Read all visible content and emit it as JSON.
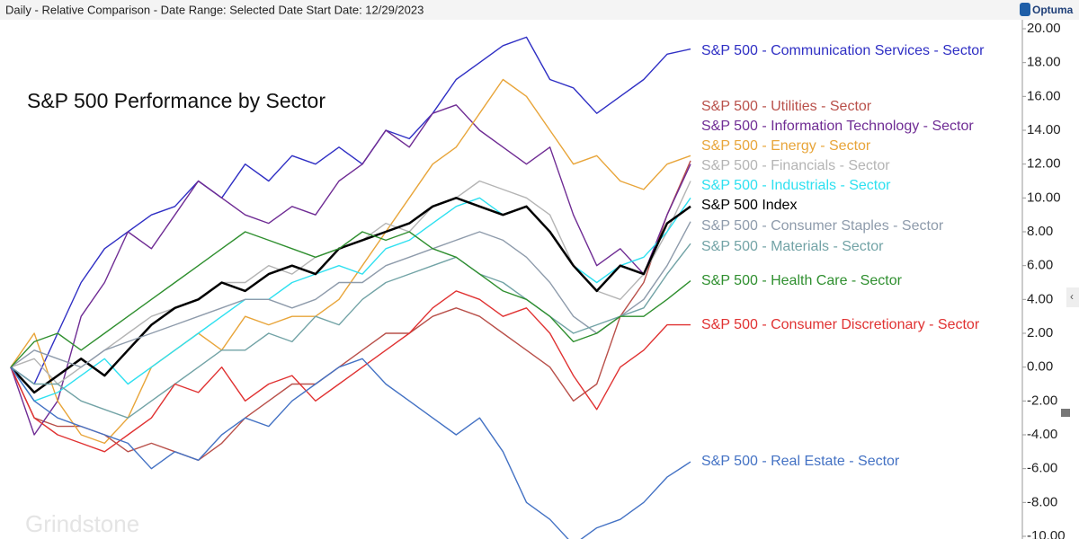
{
  "header": "Daily - Relative Comparison - Date Range: Selected Date  Start Date: 12/29/2023",
  "logo": "Optuma",
  "watermark": "Grindstone",
  "chart_data": {
    "type": "line",
    "title": "S&P 500 Performance by Sector",
    "ylim": [
      -10,
      20
    ],
    "yticks": [
      {
        "value": 20,
        "label": "20.00"
      },
      {
        "value": 18,
        "label": "18.00"
      },
      {
        "value": 16,
        "label": "16.00"
      },
      {
        "value": 14,
        "label": "14.00"
      },
      {
        "value": 12,
        "label": "12.00"
      },
      {
        "value": 10,
        "label": "10.00"
      },
      {
        "value": 8,
        "label": "8.00"
      },
      {
        "value": 6,
        "label": "6.00"
      },
      {
        "value": 4,
        "label": "4.00"
      },
      {
        "value": 2,
        "label": "2.00"
      },
      {
        "value": 0,
        "label": "0.00"
      },
      {
        "value": -2,
        "label": "-2.00"
      },
      {
        "value": -4,
        "label": "-4.00"
      },
      {
        "value": -6,
        "label": "-6.00"
      },
      {
        "value": -8,
        "label": "-8.00"
      },
      {
        "value": -10,
        "label": "-10.00"
      }
    ],
    "series": [
      {
        "name": "S&P 500 - Communication Services - Sector",
        "color": "#2f2fc4",
        "values": [
          0,
          -1,
          2,
          5,
          7,
          8,
          9,
          9.5,
          11,
          10,
          12,
          11,
          12.5,
          12,
          13,
          12,
          14,
          13.5,
          15,
          17,
          18,
          19,
          19.5,
          17,
          16.5,
          15,
          16,
          17,
          18.5,
          18.8
        ]
      },
      {
        "name": "S&P 500 - Utilities - Sector",
        "color": "#b9504a",
        "values": [
          0,
          -3,
          -3.5,
          -3.5,
          -4,
          -5,
          -4.5,
          -5,
          -5.5,
          -4.5,
          -3,
          -2,
          -1,
          -1,
          0,
          1,
          2,
          2,
          3,
          3.5,
          3,
          2,
          1,
          0,
          -2,
          -1,
          3,
          5,
          9,
          12.2
        ]
      },
      {
        "name": "S&P 500 - Information Technology - Sector",
        "color": "#6f2c94",
        "values": [
          0,
          -4,
          -2,
          3,
          5,
          8,
          7,
          9,
          11,
          10,
          9,
          8.5,
          9.5,
          9,
          11,
          12,
          14,
          13,
          15,
          15.5,
          14,
          13,
          12,
          13,
          9,
          6,
          7,
          5.5,
          9,
          12
        ]
      },
      {
        "name": "S&P 500 - Energy - Sector",
        "color": "#e8a53a",
        "values": [
          0,
          2,
          -2,
          -4,
          -4.5,
          -3,
          0,
          1,
          2,
          1,
          3,
          2.5,
          3,
          3,
          4,
          6,
          8,
          10,
          12,
          13,
          15,
          17,
          16,
          14,
          12,
          12.5,
          11,
          10.5,
          12,
          12.5
        ]
      },
      {
        "name": "S&P 500 - Financials - Sector",
        "color": "#b4b4b4",
        "values": [
          0,
          0.5,
          -1,
          0,
          1,
          2,
          3,
          3.5,
          4,
          5,
          5,
          6,
          5.5,
          6.5,
          7,
          7.5,
          8.5,
          8,
          9.5,
          10,
          11,
          10.5,
          10,
          9,
          6,
          4.5,
          4,
          5.5,
          8,
          11
        ]
      },
      {
        "name": "S&P 500 - Industrials - Sector",
        "color": "#2ee0f0",
        "values": [
          0,
          -2,
          -1.5,
          -0.5,
          0.5,
          -1,
          0,
          1,
          2,
          3,
          4,
          4,
          5,
          5.5,
          6,
          5.5,
          7,
          7.5,
          8.5,
          9.5,
          10,
          9,
          9.5,
          8,
          6,
          5,
          6,
          6.5,
          8,
          10
        ]
      },
      {
        "name": "S&P 500 Index",
        "color": "#000000",
        "values": [
          0,
          -1.5,
          -0.5,
          0.5,
          -0.5,
          1,
          2.5,
          3.5,
          4,
          5,
          4.5,
          5.5,
          6,
          5.5,
          7,
          7.5,
          8,
          8.5,
          9.5,
          10,
          9.5,
          9,
          9.5,
          8,
          6,
          4.5,
          6,
          5.5,
          8.5,
          9.5
        ]
      },
      {
        "name": "S&P 500 - Consumer Staples - Sector",
        "color": "#8e9bab",
        "values": [
          0,
          1,
          0.5,
          0,
          1,
          1.5,
          2,
          2.5,
          3,
          3.5,
          4,
          4,
          3.5,
          4,
          5,
          5,
          6,
          6.5,
          7,
          7.5,
          8,
          7.5,
          6.5,
          5,
          3,
          2,
          3,
          4,
          6,
          8.6
        ]
      },
      {
        "name": "S&P 500 - Materials - Sector",
        "color": "#72a3a6",
        "values": [
          0,
          -1,
          -1,
          -2,
          -2.5,
          -3,
          -2,
          -1,
          0,
          1,
          1,
          2,
          1.5,
          3,
          2.5,
          4,
          5,
          5.5,
          6,
          6.5,
          5.5,
          5,
          4,
          3,
          2,
          2.5,
          3,
          3.5,
          5.5,
          7.3
        ]
      },
      {
        "name": "S&P 500 - Health Care - Sector",
        "color": "#2f8f2f",
        "values": [
          0,
          1.5,
          2,
          1,
          2,
          3,
          4,
          5,
          6,
          7,
          8,
          7.5,
          7,
          6.5,
          7,
          8,
          7.5,
          8,
          7,
          6.5,
          5.5,
          4.5,
          4,
          3,
          1.5,
          2,
          3,
          3,
          4,
          5.1
        ]
      },
      {
        "name": "S&P 500 - Consumer Discretionary - Sector",
        "color": "#e03232",
        "values": [
          0,
          -3,
          -4,
          -4.5,
          -5,
          -4,
          -3,
          -1,
          -1.5,
          0,
          -2,
          -1,
          -0.5,
          -2,
          -1,
          0,
          1,
          2,
          3.5,
          4.5,
          4,
          3,
          3.5,
          2,
          -0.5,
          -2.5,
          0,
          1,
          2.5,
          2.5
        ]
      },
      {
        "name": "S&P 500 - Real Estate - Sector",
        "color": "#4472c4",
        "values": [
          0,
          -2,
          -3,
          -3.5,
          -4,
          -4.5,
          -6,
          -5,
          -5.5,
          -4,
          -3,
          -3.5,
          -2,
          -1,
          0,
          0.5,
          -1,
          -2,
          -3,
          -4,
          -3,
          -5,
          -8,
          -9,
          -10.5,
          -9.5,
          -9,
          -8,
          -6.5,
          -5.6
        ]
      }
    ]
  }
}
